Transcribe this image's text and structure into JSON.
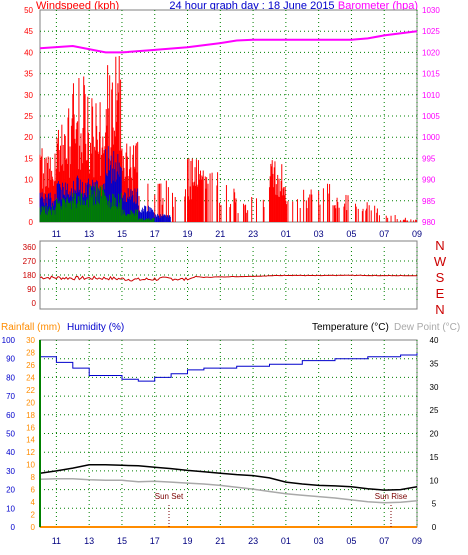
{
  "header": {
    "left_label": "Windspeed (kph)",
    "title": "24 hour graph day : 18 June 2015",
    "right_label": "Barometer (hpa)"
  },
  "colors": {
    "wind": "#ff0000",
    "gust_band": "#0000cc",
    "green": "#008000",
    "barometer": "#ff00ff",
    "direction": "#cc0000",
    "humidity": "#0000cc",
    "temperature": "#000000",
    "dewpoint": "#a9a9a9",
    "rainfall": "#ff8c00",
    "left_axis": "#ff0000",
    "baro_axis": "#ff00ff",
    "grid": "#008000"
  },
  "time_ticks": [
    "11",
    "13",
    "15",
    "17",
    "19",
    "21",
    "23",
    "01",
    "03",
    "05",
    "07",
    "09"
  ],
  "wind_panel": {
    "y_ticks": [
      "0",
      "5",
      "10",
      "15",
      "20",
      "25",
      "30",
      "35",
      "40",
      "45",
      "50"
    ],
    "baro_ticks": [
      "980",
      "985",
      "990",
      "995",
      "1000",
      "1005",
      "1010",
      "1015",
      "1020",
      "1025",
      "1030"
    ]
  },
  "dir_panel": {
    "y_ticks": [
      "0",
      "90",
      "180",
      "270",
      "360"
    ],
    "compass": [
      "N",
      "W",
      "S",
      "E",
      "N"
    ]
  },
  "bottom_panel": {
    "rain_label": "Rainfall (mm)",
    "humidity_label": "Humidity (%)",
    "temperature_label": "Temperature (°C)",
    "dewpoint_label": "Dew Point (°C)",
    "left_ticks": [
      "0",
      "10",
      "20",
      "30",
      "40",
      "50",
      "60",
      "70",
      "80",
      "90",
      "100"
    ],
    "rain_ticks": [
      "0",
      "2",
      "4",
      "6",
      "8",
      "10",
      "12",
      "14",
      "16",
      "18",
      "20",
      "22",
      "24",
      "26",
      "28",
      "30"
    ],
    "temp_ticks": [
      "0",
      "5",
      "10",
      "15",
      "20",
      "25",
      "30",
      "35",
      "40"
    ],
    "sunset_label": "Sun Set",
    "sunrise_label": "Sun Rise"
  },
  "chart_data": [
    {
      "type": "bar",
      "name": "windspeed",
      "x_start": "10:00",
      "x_end": "09:00",
      "ylim": [
        0,
        50
      ],
      "hourly_max_kph": [
        18,
        28,
        35,
        30,
        40,
        20,
        12,
        10,
        8,
        15,
        12,
        9,
        6,
        7,
        15,
        6,
        8,
        10,
        7,
        5,
        4,
        2,
        1,
        2
      ],
      "gust_band_kph": [
        7,
        10,
        11,
        10,
        18,
        8,
        4,
        2,
        0,
        0,
        0,
        0,
        0,
        0,
        0,
        0,
        0,
        0,
        0,
        0,
        0,
        0,
        0,
        0
      ],
      "green_band_kph": [
        4,
        6,
        7,
        9,
        7,
        3,
        1,
        0,
        0,
        0,
        0,
        0,
        0,
        0,
        0,
        0,
        0,
        0,
        0,
        0,
        0,
        0,
        0,
        0
      ]
    },
    {
      "type": "line",
      "name": "barometer",
      "ylim": [
        980,
        1030
      ],
      "points": [
        [
          "10:00",
          1021
        ],
        [
          "12:00",
          1021.5
        ],
        [
          "14:00",
          1020
        ],
        [
          "15:00",
          1020
        ],
        [
          "17:00",
          1020.6
        ],
        [
          "19:00",
          1021.2
        ],
        [
          "21:00",
          1022.2
        ],
        [
          "22:00",
          1022.8
        ],
        [
          "23:00",
          1023
        ],
        [
          "05:00",
          1023
        ],
        [
          "06:00",
          1023.3
        ],
        [
          "07:00",
          1024
        ],
        [
          "09:00",
          1025
        ]
      ]
    },
    {
      "type": "line",
      "name": "wind direction",
      "ylim": [
        0,
        360
      ],
      "points": [
        [
          "10:00",
          165
        ],
        [
          "12:00",
          160
        ],
        [
          "14:00",
          160
        ],
        [
          "16:00",
          150
        ],
        [
          "18:00",
          158
        ],
        [
          "19:00",
          150
        ],
        [
          "19:30",
          170
        ],
        [
          "20:00",
          165
        ],
        [
          "21:00",
          168
        ],
        [
          "23:00",
          172
        ],
        [
          "01:00",
          178
        ],
        [
          "03:00",
          176
        ],
        [
          "05:00",
          178
        ],
        [
          "07:00",
          176
        ],
        [
          "09:00",
          176
        ]
      ]
    },
    {
      "type": "line",
      "name": "humidity",
      "ylim": [
        0,
        100
      ],
      "points": [
        [
          "10:00",
          91
        ],
        [
          "11:00",
          88
        ],
        [
          "12:00",
          85
        ],
        [
          "13:00",
          81
        ],
        [
          "14:00",
          81
        ],
        [
          "15:00",
          79
        ],
        [
          "16:00",
          78
        ],
        [
          "17:00",
          80
        ],
        [
          "18:00",
          82
        ],
        [
          "19:00",
          84
        ],
        [
          "20:00",
          85
        ],
        [
          "22:00",
          86
        ],
        [
          "00:00",
          87
        ],
        [
          "02:00",
          89
        ],
        [
          "04:00",
          90
        ],
        [
          "06:00",
          91
        ],
        [
          "08:00",
          92
        ],
        [
          "09:00",
          93
        ]
      ]
    },
    {
      "type": "line",
      "name": "temperature",
      "ylim": [
        0,
        40
      ],
      "points": [
        [
          "10:00",
          11.5
        ],
        [
          "11:00",
          12
        ],
        [
          "12:00",
          12.6
        ],
        [
          "13:00",
          13.3
        ],
        [
          "14:00",
          13.3
        ],
        [
          "15:00",
          13.2
        ],
        [
          "16:00",
          13.1
        ],
        [
          "17:00",
          12.8
        ],
        [
          "18:00",
          12.5
        ],
        [
          "19:00",
          12.1
        ],
        [
          "20:00",
          11.8
        ],
        [
          "21:00",
          11.5
        ],
        [
          "22:00",
          11.2
        ],
        [
          "23:00",
          11
        ],
        [
          "00:00",
          10.5
        ],
        [
          "01:00",
          9.6
        ],
        [
          "02:00",
          9.2
        ],
        [
          "03:00",
          8.9
        ],
        [
          "04:00",
          8.8
        ],
        [
          "05:00",
          8.6
        ],
        [
          "06:00",
          8.2
        ],
        [
          "07:00",
          7.9
        ],
        [
          "08:00",
          8
        ],
        [
          "09:00",
          8.6
        ]
      ]
    },
    {
      "type": "line",
      "name": "dew point",
      "ylim": [
        0,
        40
      ],
      "points": [
        [
          "10:00",
          10.2
        ],
        [
          "11:00",
          10.3
        ],
        [
          "12:00",
          10.3
        ],
        [
          "13:00",
          10.1
        ],
        [
          "14:00",
          10
        ],
        [
          "15:00",
          10
        ],
        [
          "16:00",
          9.7
        ],
        [
          "17:00",
          9.8
        ],
        [
          "18:00",
          9.6
        ],
        [
          "19:00",
          9.4
        ],
        [
          "20:00",
          9.2
        ],
        [
          "21:00",
          8.9
        ],
        [
          "22:00",
          8.5
        ],
        [
          "23:00",
          8.1
        ],
        [
          "00:00",
          7.6
        ],
        [
          "01:00",
          7.1
        ],
        [
          "02:00",
          6.8
        ],
        [
          "03:00",
          6.5
        ],
        [
          "04:00",
          6.2
        ],
        [
          "05:00",
          5.8
        ],
        [
          "06:00",
          5.4
        ],
        [
          "07:00",
          5.2
        ],
        [
          "08:00",
          5.3
        ],
        [
          "09:00",
          5.6
        ]
      ]
    },
    {
      "type": "line",
      "name": "rainfall",
      "ylim": [
        0,
        30
      ],
      "points": [
        [
          "10:00",
          0
        ],
        [
          "09:00",
          0
        ]
      ]
    }
  ]
}
